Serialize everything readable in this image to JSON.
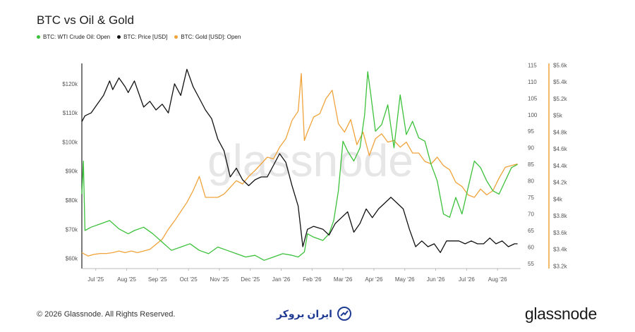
{
  "header": {
    "title": "BTC vs Oil & Gold",
    "legend": [
      {
        "label": "BTC: WTI Crude Oil: Open",
        "color": "#3cc13b"
      },
      {
        "label": "BTC: Price [USD]",
        "color": "#111111"
      },
      {
        "label": "BTC: Gold [USD]: Open",
        "color": "#f0a33a"
      }
    ]
  },
  "watermark": "glassnode",
  "footer": {
    "copyright": "© 2026 Glassnode. All Rights Reserved.",
    "center_logo_text": "ایران بروکر",
    "brand": "glassnode"
  },
  "chart_data": {
    "type": "line",
    "x_ticks": [
      "Jul '25",
      "Aug '25",
      "Sep '25",
      "Oct '25",
      "Nov '25",
      "Dec '25",
      "Jan '26",
      "Feb '26",
      "Mar '26",
      "Apr '26",
      "May '26",
      "Jun '26",
      "Jul '26",
      "Aug '26"
    ],
    "x_range": [
      0,
      14.2
    ],
    "axes": {
      "left": {
        "ticks": [
          "$60k",
          "$70k",
          "$80k",
          "$90k",
          "$100k",
          "$110k",
          "$120k"
        ],
        "values": [
          60,
          70,
          80,
          90,
          100,
          110,
          120
        ],
        "range": [
          56.5,
          127
        ]
      },
      "oil": {
        "ticks": [
          "55",
          "60",
          "65",
          "70",
          "75",
          "80",
          "85",
          "90",
          "95",
          "100",
          "105",
          "110",
          "115"
        ],
        "values": [
          55,
          60,
          65,
          70,
          75,
          80,
          85,
          90,
          95,
          100,
          105,
          110,
          115
        ],
        "range": [
          53.5,
          115.5
        ]
      },
      "gold": {
        "ticks": [
          "$3.2k",
          "$3.4k",
          "$3.6k",
          "$3.8k",
          "$4k",
          "$4.2k",
          "$4.4k",
          "$4.6k",
          "$4.8k",
          "$5k",
          "$5.2k",
          "$5.4k",
          "$5.6k"
        ],
        "values": [
          3.2,
          3.4,
          3.6,
          3.8,
          4.0,
          4.2,
          4.4,
          4.6,
          4.8,
          5.0,
          5.2,
          5.4,
          5.6
        ],
        "range": [
          3.17,
          5.62
        ]
      }
    },
    "series": [
      {
        "name": "BTC: WTI Crude Oil: Open",
        "axis": "oil",
        "color": "#3cc13b",
        "x": [
          0,
          0.05,
          0.1,
          0.3,
          0.6,
          0.9,
          1.2,
          1.5,
          1.7,
          2.0,
          2.3,
          2.6,
          2.9,
          3.2,
          3.5,
          3.8,
          4.1,
          4.4,
          4.7,
          5.0,
          5.3,
          5.6,
          5.9,
          6.2,
          6.5,
          6.8,
          7.0,
          7.2,
          7.3,
          7.5,
          7.8,
          8.0,
          8.15,
          8.3,
          8.45,
          8.6,
          8.8,
          9.0,
          9.15,
          9.25,
          9.35,
          9.5,
          9.7,
          9.9,
          10.1,
          10.3,
          10.5,
          10.7,
          10.9,
          11.1,
          11.3,
          11.5,
          11.7,
          11.9,
          12.1,
          12.3,
          12.5,
          12.7,
          12.9,
          13.1,
          13.3,
          13.5,
          13.7,
          13.9,
          14.1
        ],
        "values": [
          76,
          86,
          65,
          66,
          67,
          68,
          65.5,
          64,
          65,
          66,
          64,
          61.5,
          59,
          60,
          61,
          59,
          58,
          60,
          59,
          58,
          57,
          57.5,
          56,
          57,
          58,
          57.5,
          57,
          58.5,
          64,
          63,
          62,
          64,
          68,
          77,
          92,
          89,
          86,
          90,
          100,
          113,
          106,
          95,
          97,
          103,
          90,
          106,
          94,
          98,
          93,
          92,
          85,
          80,
          70,
          69,
          75,
          70,
          78,
          86,
          84,
          80,
          77,
          76,
          80,
          84,
          85
        ]
      },
      {
        "name": "BTC: Price [USD]",
        "axis": "left",
        "color": "#111111",
        "x": [
          0,
          0.1,
          0.3,
          0.5,
          0.7,
          0.9,
          1.0,
          1.2,
          1.4,
          1.5,
          1.7,
          1.9,
          2.0,
          2.2,
          2.4,
          2.6,
          2.8,
          3.0,
          3.2,
          3.4,
          3.6,
          3.8,
          4.0,
          4.2,
          4.4,
          4.6,
          4.8,
          5.0,
          5.2,
          5.4,
          5.6,
          5.8,
          6.0,
          6.2,
          6.4,
          6.6,
          6.8,
          7.0,
          7.15,
          7.3,
          7.5,
          7.8,
          8.0,
          8.2,
          8.4,
          8.6,
          8.8,
          9.0,
          9.2,
          9.4,
          9.6,
          9.8,
          10.0,
          10.2,
          10.4,
          10.6,
          10.8,
          11.0,
          11.2,
          11.4,
          11.6,
          11.8,
          12.0,
          12.2,
          12.4,
          12.6,
          12.8,
          13.0,
          13.2,
          13.4,
          13.6,
          13.8,
          14.0,
          14.1
        ],
        "values": [
          107,
          109,
          110,
          113,
          116,
          121,
          118,
          122,
          119,
          117,
          121,
          115,
          112,
          114,
          111,
          113,
          110,
          120,
          116,
          125,
          119,
          115,
          111,
          108,
          101,
          97,
          88,
          91,
          87,
          85,
          87,
          88,
          88,
          92,
          96,
          93,
          85,
          78,
          64,
          70,
          71,
          70,
          68,
          72,
          74,
          76,
          69,
          72,
          77,
          74,
          77,
          79,
          81,
          79,
          77,
          70,
          64,
          66,
          64,
          65,
          62,
          66,
          66,
          66,
          65,
          66,
          65,
          65,
          67,
          65,
          66,
          64,
          65,
          65
        ]
      },
      {
        "name": "BTC: Gold [USD]: Open",
        "axis": "gold",
        "color": "#f0a33a",
        "x": [
          0,
          0.2,
          0.4,
          0.6,
          0.8,
          1.0,
          1.2,
          1.4,
          1.6,
          1.8,
          2.0,
          2.2,
          2.4,
          2.6,
          2.8,
          3.0,
          3.2,
          3.4,
          3.6,
          3.8,
          4.0,
          4.2,
          4.4,
          4.6,
          4.8,
          5.0,
          5.2,
          5.4,
          5.6,
          5.8,
          6.0,
          6.2,
          6.4,
          6.6,
          6.8,
          7.0,
          7.1,
          7.2,
          7.3,
          7.5,
          7.7,
          7.9,
          8.1,
          8.3,
          8.5,
          8.7,
          8.9,
          9.1,
          9.3,
          9.5,
          9.7,
          9.9,
          10.1,
          10.3,
          10.5,
          10.7,
          10.9,
          11.1,
          11.3,
          11.5,
          11.7,
          11.9,
          12.1,
          12.3,
          12.5,
          12.7,
          12.9,
          13.1,
          13.3,
          13.5,
          13.7,
          13.9,
          14.1
        ],
        "values": [
          3.36,
          3.32,
          3.34,
          3.35,
          3.35,
          3.36,
          3.38,
          3.36,
          3.38,
          3.36,
          3.38,
          3.4,
          3.46,
          3.52,
          3.64,
          3.74,
          3.85,
          3.96,
          4.1,
          4.27,
          4.02,
          4.02,
          4.02,
          4.06,
          4.14,
          4.22,
          4.18,
          4.27,
          4.34,
          4.42,
          4.5,
          4.48,
          4.62,
          4.72,
          4.94,
          5.05,
          5.5,
          4.7,
          4.8,
          4.98,
          5.02,
          5.2,
          5.3,
          4.9,
          4.8,
          4.95,
          4.65,
          4.8,
          4.52,
          4.72,
          4.78,
          4.68,
          4.7,
          4.62,
          4.68,
          4.55,
          4.55,
          4.45,
          4.42,
          4.5,
          4.4,
          4.35,
          4.2,
          4.15,
          4.05,
          4.02,
          4.12,
          4.05,
          4.1,
          4.25,
          4.38,
          4.4,
          4.42
        ]
      }
    ]
  }
}
